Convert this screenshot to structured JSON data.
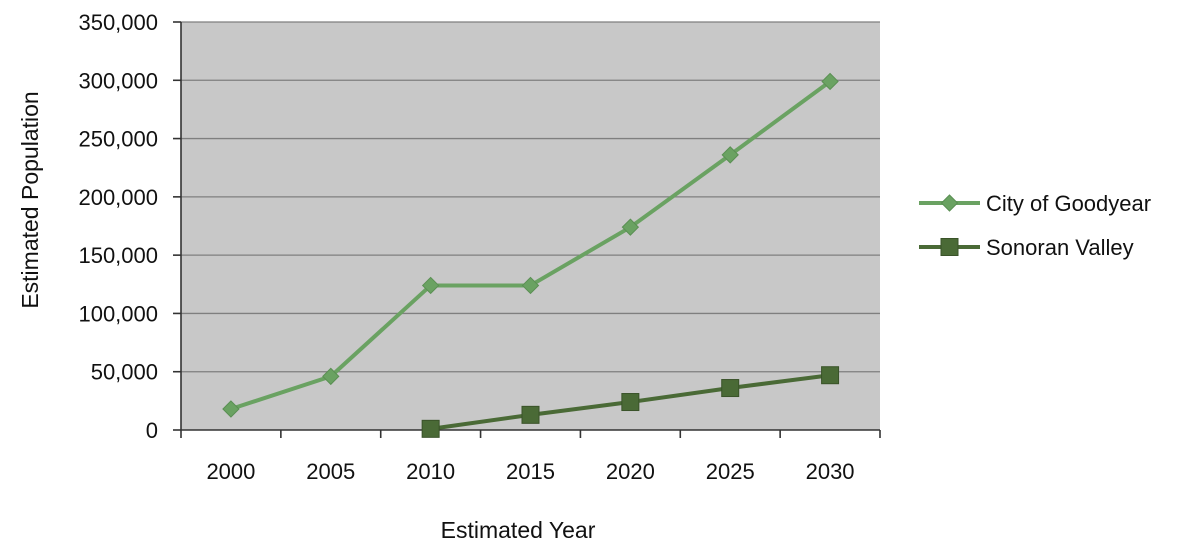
{
  "chart_data": {
    "type": "line",
    "title": "",
    "xlabel": "Estimated Year",
    "ylabel": "Estimated Population",
    "categories": [
      "2000",
      "2005",
      "2010",
      "2015",
      "2020",
      "2025",
      "2030"
    ],
    "ylim": [
      0,
      350000
    ],
    "yticks": [
      "0",
      "50,000",
      "100,000",
      "150,000",
      "200,000",
      "250,000",
      "300,000",
      "350,000"
    ],
    "ytick_values": [
      0,
      50000,
      100000,
      150000,
      200000,
      250000,
      300000,
      350000
    ],
    "grid": true,
    "legend_position": "right",
    "plot_background": "#c8c8c8",
    "series": [
      {
        "name": "City of Goodyear",
        "color": "#6aa262",
        "marker": "diamond",
        "values": [
          18000,
          46000,
          124000,
          124000,
          174000,
          236000,
          299000
        ]
      },
      {
        "name": "Sonoran Valley",
        "color": "#4a6a36",
        "marker": "square",
        "values": [
          null,
          null,
          1000,
          13000,
          24000,
          36000,
          47000
        ]
      }
    ]
  }
}
